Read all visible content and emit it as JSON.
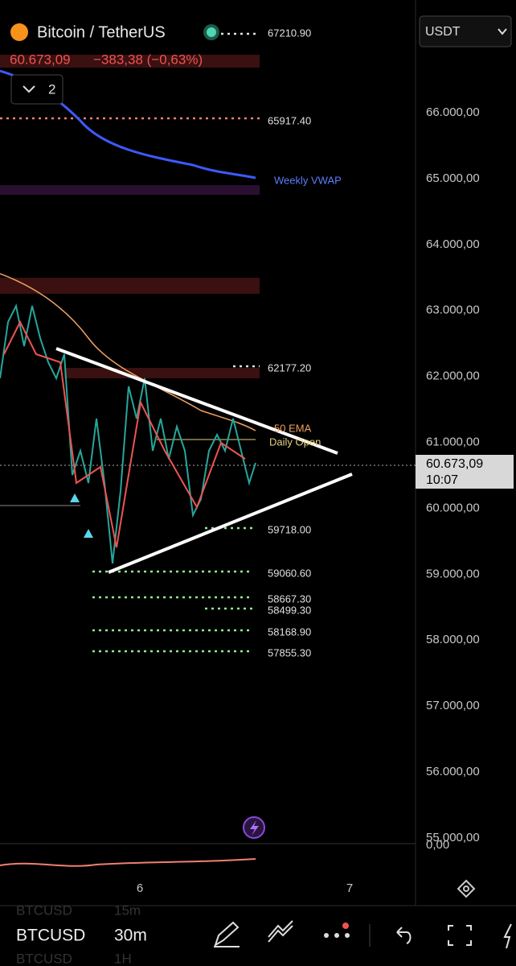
{
  "header": {
    "symbol_title": "Bitcoin / TetherUS",
    "price": "60.673,09",
    "change": "−383,38 (−0,63%)",
    "indicator_count": "2",
    "currency": "USDT"
  },
  "price_axis": [
    "66.000,00",
    "65.000,00",
    "64.000,00",
    "63.000,00",
    "62.000,00",
    "61.000,00",
    "60.000,00",
    "59.000,00",
    "58.000,00",
    "57.000,00",
    "56.000,00",
    "55.000,00"
  ],
  "current_price": {
    "price": "60.673,09",
    "countdown": "10:07"
  },
  "levels": [
    "67210.90",
    "65917.40",
    "62177.20",
    "59718.00",
    "59060.60",
    "58667.30",
    "58499.30",
    "58168.90",
    "57855.30"
  ],
  "annotations": {
    "vwap": "Weekly VWAP",
    "ema": "50 EMA",
    "daily_open": "Daily Open"
  },
  "oscillator_axis": "0,00",
  "time_axis": [
    "6",
    "7"
  ],
  "toolbar": {
    "symbol": "BTCUSD",
    "interval": "30m",
    "prev_interval": "15m",
    "next_interval": "1H"
  }
}
